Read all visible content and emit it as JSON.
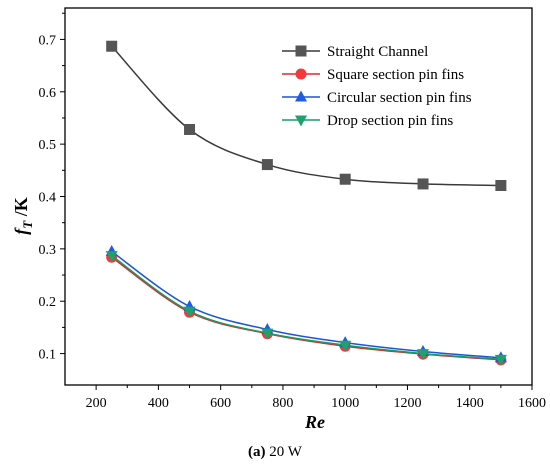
{
  "caption": {
    "prefix": "(a)",
    "text": " 20 W"
  },
  "chart_data": {
    "type": "line",
    "xlabel": "Re",
    "ylabel_main": "f",
    "ylabel_sub": "T",
    "ylabel_rest": " /K",
    "xlim": [
      100,
      1600
    ],
    "ylim": [
      0.04,
      0.76
    ],
    "xticks": [
      200,
      400,
      600,
      800,
      1000,
      1200,
      1400,
      1600
    ],
    "xtick_labels": [
      "200",
      "400",
      "600",
      "800",
      "1000",
      "1200",
      "1400",
      "1600"
    ],
    "yticks": [
      0.1,
      0.2,
      0.3,
      0.4,
      0.5,
      0.6,
      0.7
    ],
    "ytick_labels": [
      "0.1",
      "0.2",
      "0.3",
      "0.4",
      "0.5",
      "0.6",
      "0.7"
    ],
    "grid": false,
    "legend_position": "top-right",
    "x": [
      250,
      500,
      750,
      1000,
      1250,
      1500
    ],
    "series": [
      {
        "name": "Straight Channel",
        "marker": "square",
        "color": "#3a3a3a",
        "marker_color": "#555555",
        "values": [
          0.687,
          0.528,
          0.461,
          0.433,
          0.424,
          0.421
        ]
      },
      {
        "name": "Square section pin fins",
        "marker": "circle",
        "color": "#e02828",
        "marker_color": "#ef3b3b",
        "values": [
          0.284,
          0.179,
          0.138,
          0.114,
          0.099,
          0.088
        ]
      },
      {
        "name": "Circular section pin fins",
        "marker": "triangle-up",
        "color": "#1a56d6",
        "marker_color": "#1f5ce0",
        "values": [
          0.295,
          0.19,
          0.146,
          0.121,
          0.104,
          0.092
        ]
      },
      {
        "name": "Drop section pin fins",
        "marker": "triangle-down",
        "color": "#1a9a63",
        "marker_color": "#1fa06c",
        "values": [
          0.287,
          0.181,
          0.139,
          0.116,
          0.1,
          0.089
        ]
      }
    ]
  }
}
